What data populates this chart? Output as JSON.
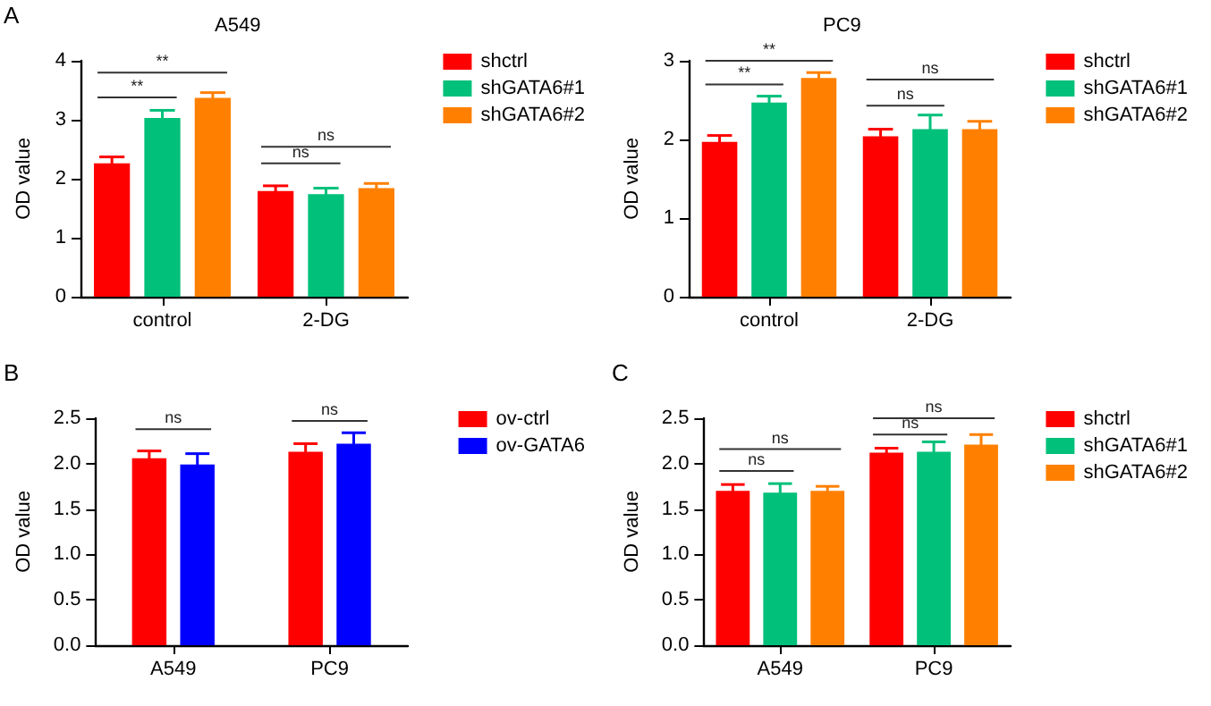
{
  "chart_data": [
    {
      "type": "bar",
      "title": "A549",
      "ylabel": "OD value",
      "categories": [
        "control",
        "2-DG"
      ],
      "ylim": [
        0,
        4
      ],
      "yticks": [
        0,
        1,
        2,
        3,
        4
      ],
      "grid": false,
      "legend": "right",
      "series": [
        {
          "name": "shctrl",
          "color": "#ff0000",
          "values": [
            2.26,
            1.79
          ],
          "errors": [
            0.11,
            0.09
          ]
        },
        {
          "name": "shGATA6#1",
          "color": "#00c07a",
          "values": [
            3.03,
            1.74
          ],
          "errors": [
            0.13,
            0.1
          ]
        },
        {
          "name": "shGATA6#2",
          "color": "#ff8000",
          "values": [
            3.37,
            1.84
          ],
          "errors": [
            0.09,
            0.08
          ]
        }
      ],
      "annotations": [
        "A",
        "**",
        "**",
        "ns",
        "ns"
      ]
    },
    {
      "type": "bar",
      "title": "PC9",
      "ylabel": "OD value",
      "categories": [
        "control",
        "2-DG"
      ],
      "ylim": [
        0,
        3
      ],
      "yticks": [
        0,
        1,
        2,
        3
      ],
      "grid": false,
      "legend": "right",
      "series": [
        {
          "name": "shctrl",
          "color": "#ff0000",
          "values": [
            1.97,
            2.04
          ],
          "errors": [
            0.08,
            0.09
          ]
        },
        {
          "name": "shGATA6#1",
          "color": "#00c07a",
          "values": [
            2.47,
            2.13
          ],
          "errors": [
            0.08,
            0.18
          ]
        },
        {
          "name": "shGATA6#2",
          "color": "#ff8000",
          "values": [
            2.78,
            2.13
          ],
          "errors": [
            0.07,
            0.1
          ]
        }
      ],
      "annotations": [
        "**",
        "**",
        "ns",
        "ns"
      ]
    },
    {
      "type": "bar",
      "ylabel": "OD value",
      "categories": [
        "A549",
        "PC9"
      ],
      "ylim": [
        0,
        2.5
      ],
      "yticks": [
        {
          "value": 0,
          "label": "0.0"
        },
        {
          "value": 0.5,
          "label": "0.5"
        },
        {
          "value": 1,
          "label": "1.0"
        },
        {
          "value": 1.5,
          "label": "1.5"
        },
        {
          "value": 2,
          "label": "2.0"
        },
        {
          "value": 2.5,
          "label": "2.5"
        }
      ],
      "grid": false,
      "legend": "right",
      "series": [
        {
          "name": "ov-ctrl",
          "color": "#ff0000",
          "values": [
            2.06,
            2.13
          ],
          "errors": [
            0.08,
            0.09
          ]
        },
        {
          "name": "ov-GATA6",
          "color": "#0000ff",
          "values": [
            1.99,
            2.22
          ],
          "errors": [
            0.12,
            0.12
          ]
        }
      ],
      "annotations": [
        "B",
        "ns",
        "ns"
      ]
    },
    {
      "type": "bar",
      "ylabel": "OD value",
      "categories": [
        "A549",
        "PC9"
      ],
      "ylim": [
        0,
        2.5
      ],
      "yticks": [
        {
          "value": 0,
          "label": "0.0"
        },
        {
          "value": 0.5,
          "label": "0.5"
        },
        {
          "value": 1,
          "label": "1.0"
        },
        {
          "value": 1.5,
          "label": "1.5"
        },
        {
          "value": 2,
          "label": "2.0"
        },
        {
          "value": 2.5,
          "label": "2.5"
        }
      ],
      "grid": false,
      "legend": "right",
      "series": [
        {
          "name": "shctrl",
          "color": "#ff0000",
          "values": [
            1.7,
            2.12
          ],
          "errors": [
            0.07,
            0.05
          ]
        },
        {
          "name": "shGATA6#1",
          "color": "#00c07a",
          "values": [
            1.68,
            2.13
          ],
          "errors": [
            0.1,
            0.11
          ]
        },
        {
          "name": "shGATA6#2",
          "color": "#ff8000",
          "values": [
            1.7,
            2.21
          ],
          "errors": [
            0.05,
            0.11
          ]
        }
      ],
      "annotations": [
        "C",
        "ns",
        "ns",
        "ns",
        "ns"
      ]
    }
  ]
}
